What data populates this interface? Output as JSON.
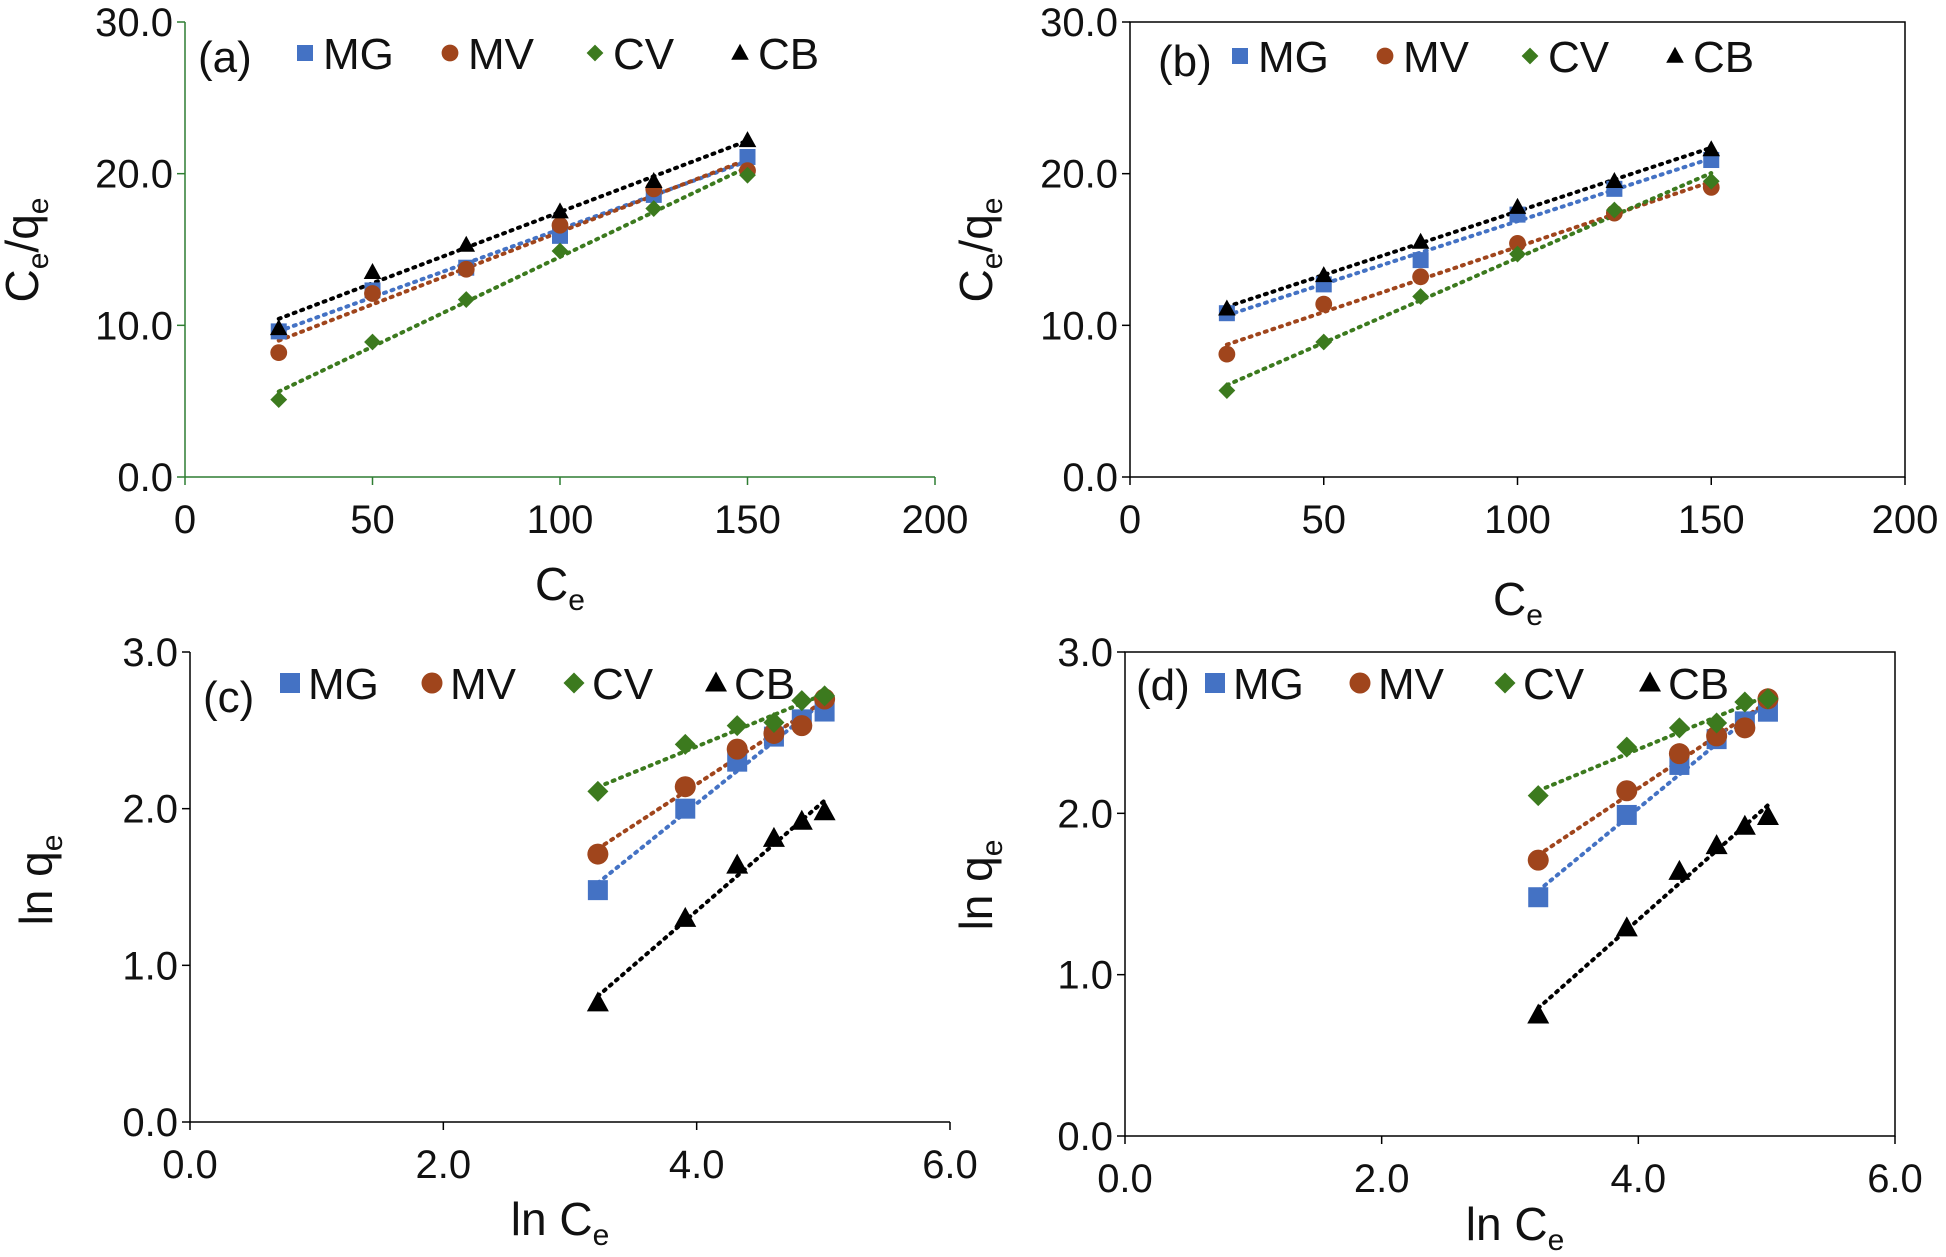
{
  "colors": {
    "MG": "#4472C4",
    "MV": "#A0451C",
    "CV": "#3C7A1E",
    "CB": "#000000"
  },
  "chart_data": [
    {
      "panel": "a",
      "type": "scatter",
      "label": "(a)",
      "xlabel": {
        "main": "C",
        "sub": "e"
      },
      "ylabel": {
        "main": "C",
        "sub1": "e",
        "mid": "/q",
        "sub2": "e"
      },
      "xlim": [
        0,
        200
      ],
      "ylim": [
        0,
        30
      ],
      "xticks": [
        "0",
        "50",
        "100",
        "150",
        "200"
      ],
      "yticks": [
        "0.0",
        "10.0",
        "20.0",
        "30.0"
      ],
      "legend": [
        "MG",
        "MV",
        "CV",
        "CB"
      ],
      "series": [
        {
          "name": "MG",
          "marker": "square",
          "x": [
            25,
            50,
            75,
            100,
            125,
            150
          ],
          "y": [
            9.6,
            12.3,
            13.8,
            15.9,
            18.6,
            21.1
          ]
        },
        {
          "name": "MV",
          "marker": "circle",
          "x": [
            25,
            50,
            75,
            100,
            125,
            150
          ],
          "y": [
            8.2,
            12.1,
            13.7,
            16.6,
            19.0,
            20.2
          ]
        },
        {
          "name": "CV",
          "marker": "diamond",
          "x": [
            25,
            50,
            75,
            100,
            125,
            150
          ],
          "y": [
            5.1,
            8.9,
            11.7,
            14.9,
            17.7,
            19.9
          ]
        },
        {
          "name": "CB",
          "marker": "triangle",
          "x": [
            25,
            50,
            75,
            100,
            125,
            150
          ],
          "y": [
            9.8,
            13.5,
            15.3,
            17.5,
            19.5,
            22.2
          ]
        }
      ]
    },
    {
      "panel": "b",
      "type": "scatter",
      "label": "(b)",
      "xlabel": {
        "main": "C",
        "sub": "e"
      },
      "ylabel": {
        "main": "C",
        "sub1": "e",
        "mid": "/q",
        "sub2": "e"
      },
      "xlim": [
        0,
        200
      ],
      "ylim": [
        0,
        30
      ],
      "xticks": [
        "0",
        "50",
        "100",
        "150",
        "200"
      ],
      "yticks": [
        "0.0",
        "10.0",
        "20.0",
        "30.0"
      ],
      "legend": [
        "MG",
        "MV",
        "CV",
        "CB"
      ],
      "series": [
        {
          "name": "MG",
          "marker": "square",
          "x": [
            25,
            50,
            75,
            100,
            125,
            150
          ],
          "y": [
            10.8,
            12.7,
            14.3,
            17.3,
            19.0,
            20.9
          ]
        },
        {
          "name": "MV",
          "marker": "circle",
          "x": [
            25,
            50,
            75,
            100,
            125,
            150
          ],
          "y": [
            8.1,
            11.4,
            13.2,
            15.4,
            17.4,
            19.1
          ]
        },
        {
          "name": "CV",
          "marker": "diamond",
          "x": [
            25,
            50,
            75,
            100,
            125,
            150
          ],
          "y": [
            5.7,
            8.9,
            11.9,
            14.7,
            17.6,
            19.5
          ]
        },
        {
          "name": "CB",
          "marker": "triangle",
          "x": [
            25,
            50,
            75,
            100,
            125,
            150
          ],
          "y": [
            11.1,
            13.3,
            15.5,
            17.8,
            19.5,
            21.6
          ]
        }
      ]
    },
    {
      "panel": "c",
      "type": "scatter",
      "label": "(c)",
      "xlabel": {
        "main": "ln C",
        "sub": "e"
      },
      "ylabel": {
        "main": "ln q",
        "sub": "e"
      },
      "xlim": [
        0,
        6
      ],
      "ylim": [
        0,
        3
      ],
      "xticks": [
        "0.0",
        "2.0",
        "4.0",
        "6.0"
      ],
      "yticks": [
        "0.0",
        "1.0",
        "2.0",
        "3.0"
      ],
      "legend": [
        "MG",
        "MV",
        "CV",
        "CB"
      ],
      "series": [
        {
          "name": "MG",
          "marker": "square",
          "x": [
            3.22,
            3.91,
            4.32,
            4.61,
            4.83,
            5.01
          ],
          "y": [
            1.48,
            2.0,
            2.3,
            2.46,
            2.57,
            2.62
          ]
        },
        {
          "name": "MV",
          "marker": "circle",
          "x": [
            3.22,
            3.91,
            4.32,
            4.61,
            4.83,
            5.01
          ],
          "y": [
            1.71,
            2.14,
            2.38,
            2.48,
            2.53,
            2.7
          ]
        },
        {
          "name": "CV",
          "marker": "diamond",
          "x": [
            3.22,
            3.91,
            4.32,
            4.61,
            4.83,
            5.01
          ],
          "y": [
            2.11,
            2.41,
            2.53,
            2.55,
            2.69,
            2.72
          ]
        },
        {
          "name": "CB",
          "marker": "triangle",
          "x": [
            3.22,
            3.91,
            4.32,
            4.61,
            4.83,
            5.01
          ],
          "y": [
            0.76,
            1.3,
            1.64,
            1.81,
            1.92,
            1.98
          ]
        }
      ]
    },
    {
      "panel": "d",
      "type": "scatter",
      "label": "(d)",
      "xlabel": {
        "main": "ln C",
        "sub": "e"
      },
      "ylabel": {
        "main": "ln q",
        "sub": "e"
      },
      "xlim": [
        0,
        6
      ],
      "ylim": [
        0,
        3
      ],
      "xticks": [
        "0.0",
        "2.0",
        "4.0",
        "6.0"
      ],
      "yticks": [
        "0.0",
        "1.0",
        "2.0",
        "3.0"
      ],
      "legend": [
        "MG",
        "MV",
        "CV",
        "CB"
      ],
      "series": [
        {
          "name": "MG",
          "marker": "square",
          "x": [
            3.22,
            3.91,
            4.32,
            4.61,
            4.83,
            5.01
          ],
          "y": [
            1.48,
            1.99,
            2.3,
            2.46,
            2.57,
            2.63
          ]
        },
        {
          "name": "MV",
          "marker": "circle",
          "x": [
            3.22,
            3.91,
            4.32,
            4.61,
            4.83,
            5.01
          ],
          "y": [
            1.71,
            2.14,
            2.37,
            2.48,
            2.53,
            2.71
          ]
        },
        {
          "name": "CV",
          "marker": "diamond",
          "x": [
            3.22,
            3.91,
            4.32,
            4.61,
            4.83,
            5.01
          ],
          "y": [
            2.11,
            2.41,
            2.53,
            2.56,
            2.69,
            2.71
          ]
        },
        {
          "name": "CB",
          "marker": "triangle",
          "x": [
            3.22,
            3.91,
            4.32,
            4.61,
            4.83,
            5.01
          ],
          "y": [
            0.75,
            1.29,
            1.64,
            1.8,
            1.92,
            1.98
          ]
        }
      ]
    }
  ]
}
